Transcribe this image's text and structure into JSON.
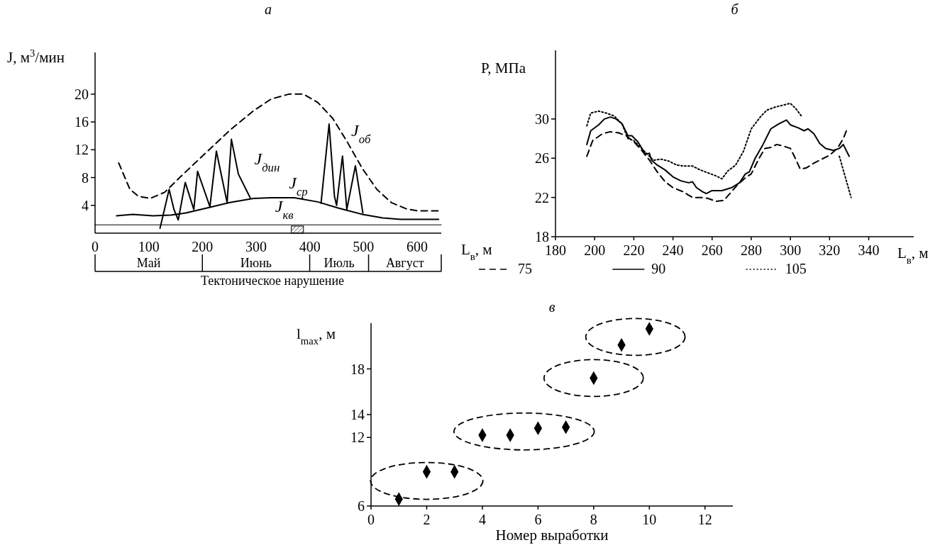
{
  "chart_data": [
    {
      "type": "line",
      "title": "а",
      "xlabel": "L$_{в}$, м",
      "ylabel": "J, м$^{3}$/мин",
      "xlim": [
        0,
        645
      ],
      "ylim": [
        0,
        26
      ],
      "xticks": [
        0,
        100,
        200,
        300,
        400,
        500,
        600
      ],
      "yticks": [
        4,
        8,
        12,
        16,
        20
      ],
      "grid": false,
      "series": [
        {
          "name": "J$_{об}$",
          "color": "#000000",
          "line_style": "dashed",
          "x": [
            44,
            65,
            81,
            103,
            130,
            163,
            207,
            251,
            295,
            328,
            361,
            388,
            415,
            443,
            470,
            498,
            525,
            552,
            580,
            602,
            640
          ],
          "values": [
            10.1,
            6.3,
            5.3,
            5.0,
            5.9,
            8.4,
            11.6,
            14.8,
            17.6,
            19.3,
            20.0,
            20.0,
            18.8,
            16.5,
            13.1,
            9.3,
            6.3,
            4.4,
            3.5,
            3.2,
            3.2
          ]
        },
        {
          "name": "J$_{дин}$",
          "color": "#000000",
          "line_style": "solid",
          "x": [
            121,
            138,
            147,
            155,
            168,
            184,
            191,
            214,
            226,
            246,
            254,
            267,
            289,
            355,
            421,
            436,
            446,
            450,
            461,
            469,
            485,
            499
          ],
          "values": [
            0.7,
            6.3,
            3.4,
            1.9,
            7.3,
            3.4,
            8.9,
            3.8,
            11.8,
            4.4,
            13.5,
            8.5,
            5.1,
            null,
            4.3,
            15.7,
            5.3,
            4.0,
            11.1,
            3.4,
            9.7,
            2.9
          ]
        },
        {
          "name": "J$_{ср}$",
          "color": "#000000",
          "line_style": "solid",
          "x": [
            40,
            70,
            108,
            141,
            169,
            207,
            251,
            295,
            328,
            371,
            415,
            454,
            498,
            536,
            569,
            640
          ],
          "values": [
            2.5,
            2.7,
            2.5,
            2.6,
            2.9,
            3.6,
            4.4,
            5.0,
            5.1,
            5.1,
            4.5,
            3.6,
            2.7,
            2.2,
            2.0,
            2.0
          ]
        },
        {
          "name": "J$_{кв}$",
          "color": "#000000",
          "line_style": "solid",
          "x": [
            0,
            645
          ],
          "values": [
            1.2,
            1.2
          ]
        }
      ],
      "annotations": [
        "Май",
        "Июнь",
        "Июль",
        "Август",
        "Тектоническое нарушение"
      ]
    },
    {
      "type": "line",
      "title": "б",
      "xlabel": "L$_{в}$, м",
      "ylabel": "P, МПа",
      "xlim": [
        180,
        363
      ],
      "ylim": [
        18,
        37
      ],
      "xticks": [
        180,
        200,
        220,
        240,
        260,
        280,
        300,
        320,
        340
      ],
      "yticks": [
        18,
        22,
        26,
        30
      ],
      "grid": false,
      "legend": "bottom",
      "series": [
        {
          "name": "75",
          "color": "#000000",
          "line_style": "dashed",
          "x": [
            196,
            199,
            204,
            208,
            212,
            216,
            220,
            224,
            228,
            232,
            236,
            240,
            245,
            250,
            255,
            258,
            262,
            266,
            270,
            273,
            277,
            280,
            284,
            287,
            290,
            293,
            297,
            300,
            302,
            305,
            308,
            312,
            316,
            320,
            324,
            327,
            329
          ],
          "values": [
            26.2,
            27.8,
            28.5,
            28.7,
            28.6,
            28.3,
            27.7,
            26.8,
            25.8,
            24.6,
            23.6,
            23.0,
            22.6,
            22.0,
            22.0,
            21.9,
            21.6,
            21.7,
            22.6,
            23.3,
            24.0,
            24.4,
            26.0,
            27.0,
            27.1,
            27.4,
            27.2,
            27.0,
            26.2,
            24.9,
            25.0,
            25.5,
            25.9,
            26.3,
            27.0,
            28.0,
            29.0
          ]
        },
        {
          "name": "90",
          "color": "#000000",
          "line_style": "solid",
          "x": [
            196,
            198,
            202,
            205,
            208,
            211,
            214,
            217,
            219,
            222,
            226,
            228,
            229,
            232,
            236,
            240,
            244,
            248,
            250,
            252,
            255,
            257,
            260,
            265,
            270,
            274,
            277,
            279,
            282,
            286,
            290,
            294,
            298,
            300,
            304,
            307,
            309,
            312,
            315,
            318,
            322,
            325,
            327,
            330
          ],
          "values": [
            27.4,
            28.8,
            29.4,
            30.0,
            30.2,
            30.0,
            29.5,
            28.3,
            28.3,
            27.7,
            26.4,
            26.5,
            25.8,
            25.3,
            24.8,
            24.1,
            23.7,
            23.5,
            23.6,
            23.0,
            22.6,
            22.4,
            22.7,
            22.7,
            23.0,
            23.5,
            24.4,
            24.6,
            26.0,
            27.4,
            29.0,
            29.5,
            29.9,
            29.4,
            29.1,
            28.8,
            29.0,
            28.5,
            27.5,
            27.0,
            26.8,
            27.0,
            27.4,
            26.2
          ]
        },
        {
          "name": "105",
          "color": "#000000",
          "line_style": "dotted",
          "x": [
            196,
            198,
            202,
            206,
            210,
            214,
            217,
            220,
            225,
            230,
            234,
            238,
            242,
            246,
            250,
            254,
            258,
            262,
            265,
            268,
            272,
            276,
            280,
            285,
            288,
            292,
            296,
            300,
            303,
            306,
            315,
            325,
            331
          ],
          "values": [
            29.3,
            30.6,
            30.8,
            30.6,
            30.3,
            29.5,
            28.0,
            27.8,
            26.8,
            25.8,
            25.9,
            25.7,
            25.3,
            25.2,
            25.2,
            24.8,
            24.5,
            24.2,
            23.9,
            24.7,
            25.3,
            26.7,
            29.0,
            30.3,
            30.9,
            31.2,
            31.4,
            31.6,
            31.0,
            30.2,
            null,
            26.2,
            22.0
          ]
        }
      ]
    },
    {
      "type": "scatter",
      "title": "в",
      "xlabel": "Номер выработки",
      "ylabel": "l$_{max}$, м",
      "xlim": [
        0,
        13
      ],
      "ylim": [
        6,
        22
      ],
      "xticks": [
        0,
        2,
        4,
        6,
        8,
        10,
        12
      ],
      "yticks": [
        6,
        12,
        14,
        18
      ],
      "grid": false,
      "marker": "diamond",
      "x": [
        1,
        2,
        3,
        4,
        5,
        6,
        7,
        8,
        9,
        10
      ],
      "values": [
        6.6,
        9.0,
        9.0,
        12.2,
        12.2,
        12.8,
        12.9,
        17.2,
        20.1,
        21.5
      ],
      "color": "#000000"
    }
  ]
}
